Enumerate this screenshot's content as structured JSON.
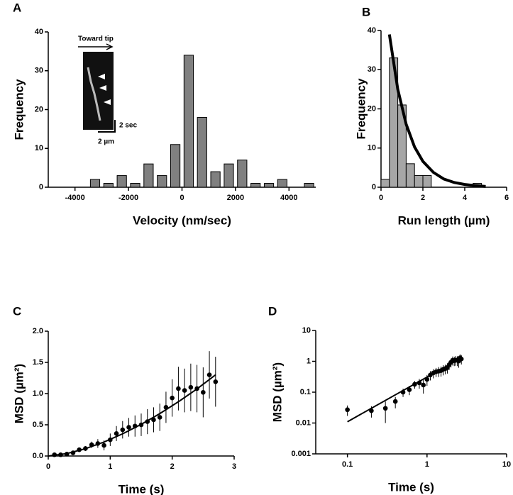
{
  "chart_data": [
    {
      "type": "histogram",
      "panel_label": "A",
      "xlabel": "Velocity (nm/sec)",
      "ylabel": "Frequency",
      "bins": [
        -3500,
        -3000,
        -2500,
        -2000,
        -1500,
        -1000,
        -500,
        0,
        500,
        1000,
        1500,
        2000,
        2500,
        3000,
        3500,
        4000,
        4500,
        5000
      ],
      "values": [
        2,
        1,
        3,
        1,
        6,
        3,
        11,
        34,
        18,
        4,
        6,
        7,
        1,
        1,
        2,
        0,
        1
      ],
      "color": "#808080",
      "xlim": [
        -5000,
        5000
      ],
      "xticks": [
        -4000,
        -2000,
        0,
        2000,
        4000
      ],
      "ylim": [
        0,
        40
      ],
      "yticks": [
        0,
        10,
        20,
        30,
        40
      ],
      "inset": {
        "direction": "Toward tip",
        "time_scale": "2 sec",
        "distance_scale": "2 µm"
      }
    },
    {
      "type": "histogram",
      "panel_label": "B",
      "xlabel": "Run length (µm)",
      "ylabel": "Frequency",
      "bins": [
        0,
        0.4,
        0.8,
        1.2,
        1.6,
        2.0,
        2.4,
        2.8,
        3.2,
        3.6,
        4.0,
        4.4,
        4.8,
        5.2
      ],
      "values": [
        2,
        33,
        21,
        6,
        3,
        3,
        0,
        0,
        0,
        0,
        0,
        1,
        0
      ],
      "color": "#a6a6a6",
      "xlim": [
        0,
        6
      ],
      "xticks": [
        0,
        2,
        4,
        6
      ],
      "ylim": [
        0,
        40
      ],
      "yticks": [
        0,
        10,
        20,
        30,
        40
      ],
      "fit": {
        "x": [
          0.4,
          0.8,
          1.2,
          1.6,
          2.0,
          2.5,
          3,
          3.5,
          4,
          4.5,
          5
        ],
        "values": [
          39,
          25,
          16.1,
          10.3,
          6.6,
          3.8,
          2.1,
          1.2,
          0.7,
          0.4,
          0.2
        ],
        "color": "#000000"
      }
    },
    {
      "type": "scatter",
      "panel_label": "C",
      "xlabel": "Time (s)",
      "ylabel": "MSD (µm²)",
      "x": [
        0.1,
        0.2,
        0.3,
        0.4,
        0.5,
        0.6,
        0.7,
        0.8,
        0.9,
        1.0,
        1.1,
        1.2,
        1.3,
        1.4,
        1.5,
        1.6,
        1.7,
        1.8,
        1.9,
        2.0,
        2.1,
        2.2,
        2.3,
        2.4,
        2.5,
        2.6,
        2.7
      ],
      "values": [
        0.02,
        0.02,
        0.03,
        0.05,
        0.1,
        0.12,
        0.18,
        0.2,
        0.17,
        0.26,
        0.36,
        0.42,
        0.46,
        0.48,
        0.5,
        0.55,
        0.58,
        0.62,
        0.78,
        0.93,
        1.08,
        1.05,
        1.1,
        1.08,
        1.02,
        1.3,
        1.19
      ],
      "errors": [
        0.01,
        0.01,
        0.02,
        0.02,
        0.03,
        0.04,
        0.05,
        0.07,
        0.08,
        0.1,
        0.12,
        0.14,
        0.15,
        0.17,
        0.18,
        0.2,
        0.2,
        0.22,
        0.25,
        0.3,
        0.35,
        0.35,
        0.38,
        0.38,
        0.4,
        0.38,
        0.4
      ],
      "color": "#000000",
      "fit": {
        "x": [
          0,
          0.3,
          0.6,
          0.9,
          1.2,
          1.5,
          1.8,
          2.1,
          2.4,
          2.7
        ],
        "values": [
          0,
          0.039,
          0.117,
          0.224,
          0.355,
          0.507,
          0.679,
          0.869,
          1.075,
          1.3
        ],
        "color": "#000000"
      },
      "xlim": [
        0,
        3
      ],
      "xticks": [
        0,
        1,
        2,
        3
      ],
      "ylim": [
        0,
        2
      ],
      "yticks": [
        {
          "value": 0,
          "label": "0.0"
        },
        0.5,
        {
          "value": 1,
          "label": "1.0"
        },
        1.5,
        {
          "value": 2,
          "label": "2.0"
        }
      ]
    },
    {
      "type": "scatter",
      "panel_label": "D",
      "xlabel": "Time (s)",
      "ylabel": "MSD (µm²)",
      "xscale": "log",
      "yscale": "log",
      "x": [
        0.1,
        0.2,
        0.3,
        0.4,
        0.5,
        0.6,
        0.7,
        0.8,
        0.9,
        1.0,
        1.1,
        1.2,
        1.3,
        1.4,
        1.5,
        1.6,
        1.7,
        1.8,
        1.9,
        2.0,
        2.1,
        2.2,
        2.3,
        2.4,
        2.5,
        2.6,
        2.7
      ],
      "values": [
        0.027,
        0.025,
        0.03,
        0.05,
        0.1,
        0.12,
        0.18,
        0.2,
        0.17,
        0.26,
        0.36,
        0.42,
        0.46,
        0.48,
        0.5,
        0.55,
        0.58,
        0.62,
        0.78,
        0.93,
        1.08,
        1.05,
        1.1,
        1.08,
        1.02,
        1.3,
        1.19
      ],
      "errors": [
        0.01,
        0.01,
        0.02,
        0.02,
        0.03,
        0.04,
        0.05,
        0.07,
        0.08,
        0.1,
        0.12,
        0.14,
        0.15,
        0.17,
        0.18,
        0.2,
        0.2,
        0.22,
        0.25,
        0.3,
        0.35,
        0.35,
        0.38,
        0.38,
        0.4,
        0.38,
        0.4
      ],
      "color": "#000000",
      "fit": {
        "x": [
          0.1,
          2.7
        ],
        "values": [
          0.011,
          1.3
        ],
        "color": "#000000"
      },
      "xlim": [
        0.04,
        10
      ],
      "xticks": [
        0.1,
        1,
        10
      ],
      "ylim": [
        0.001,
        10
      ],
      "yticks": [
        0.001,
        0.01,
        0.1,
        1,
        10
      ]
    }
  ]
}
